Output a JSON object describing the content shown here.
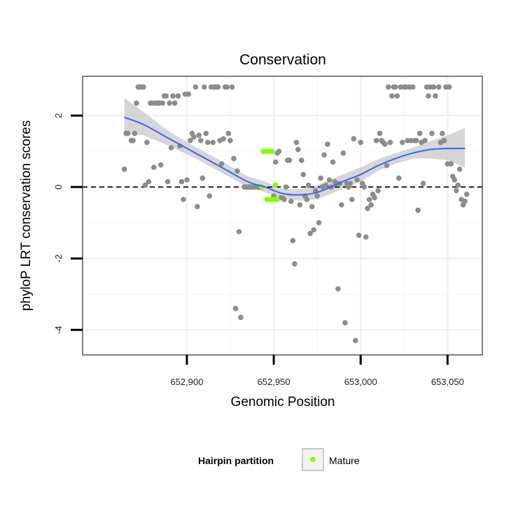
{
  "chart_data": {
    "type": "scatter",
    "title": "Conservation",
    "xlabel": "Genomic Position",
    "ylabel": "phyloP LRT conservation scores",
    "xlim": [
      652840,
      653070
    ],
    "ylim": [
      -4.7,
      3.1
    ],
    "x_ticks": [
      652900,
      652950,
      653000,
      653050
    ],
    "x_tick_labels": [
      "652,900",
      "652,950",
      "653,000",
      "653,050"
    ],
    "y_ticks": [
      -4,
      -2,
      0,
      2
    ],
    "y_tick_labels": [
      "-4",
      "-2",
      "0",
      "2"
    ],
    "grid": true,
    "reference_line": {
      "y": 0,
      "style": "dashed"
    },
    "colors": {
      "other": "#8c8c8c",
      "mature": "#7fff00",
      "smooth_line": "#3366ff",
      "confidence_band": "#c8c8c8",
      "dashed_line": "#000000"
    },
    "legend": {
      "title": "Hairpin partition",
      "position": "bottom",
      "entries": [
        {
          "label": "Mature",
          "color": "#7fff00"
        }
      ]
    },
    "series": [
      {
        "role": "other",
        "points": [
          [
            652864,
            0.5
          ],
          [
            652865,
            1.5
          ],
          [
            652866,
            1.5
          ],
          [
            652868,
            1.3
          ],
          [
            652869,
            1.3
          ],
          [
            652870,
            1.5
          ],
          [
            652871,
            2.35
          ],
          [
            652872,
            2.8
          ],
          [
            652873,
            2.8
          ],
          [
            652874,
            2.8
          ],
          [
            652875,
            2.8
          ],
          [
            652876,
            0.05
          ],
          [
            652877,
            1.25
          ],
          [
            652878,
            0.15
          ],
          [
            652879,
            2.35
          ],
          [
            652880,
            2.35
          ],
          [
            652881,
            0.55
          ],
          [
            652882,
            2.35
          ],
          [
            652883,
            2.35
          ],
          [
            652884,
            2.35
          ],
          [
            652885,
            0.62
          ],
          [
            652886,
            2.35
          ],
          [
            652887,
            2.55
          ],
          [
            652888,
            2.55
          ],
          [
            652889,
            0.15
          ],
          [
            652890,
            2.35
          ],
          [
            652891,
            1.1
          ],
          [
            652892,
            2.55
          ],
          [
            652893,
            2.35
          ],
          [
            652895,
            2.55
          ],
          [
            652896,
            1.15
          ],
          [
            652897,
            0.15
          ],
          [
            652898,
            -0.35
          ],
          [
            652899,
            2.6
          ],
          [
            652900,
            0.2
          ],
          [
            652901,
            2.6
          ],
          [
            652902,
            1.3
          ],
          [
            652903,
            1.5
          ],
          [
            652904,
            1.4
          ],
          [
            652905,
            2.8
          ],
          [
            652906,
            -0.55
          ],
          [
            652907,
            1.45
          ],
          [
            652908,
            1.3
          ],
          [
            652909,
            0.25
          ],
          [
            652910,
            2.8
          ],
          [
            652911,
            1.5
          ],
          [
            652912,
            1.25
          ],
          [
            652913,
            -0.25
          ],
          [
            652914,
            2.8
          ],
          [
            652915,
            1.25
          ],
          [
            652916,
            2.8
          ],
          [
            652917,
            2.8
          ],
          [
            652918,
            2.8
          ],
          [
            652919,
            1.3
          ],
          [
            652920,
            0.65
          ],
          [
            652921,
            1.35
          ],
          [
            652922,
            2.8
          ],
          [
            652923,
            2.8
          ],
          [
            652924,
            1.5
          ],
          [
            652925,
            1.3
          ],
          [
            652926,
            2.8
          ],
          [
            652927,
            0.8
          ],
          [
            652928,
            -3.4
          ],
          [
            652929,
            0.45
          ],
          [
            652930,
            -1.25
          ],
          [
            652931,
            -3.65
          ],
          [
            652933,
            0.0
          ],
          [
            652934,
            0.0
          ],
          [
            652935,
            0.0
          ],
          [
            652936,
            0.0
          ],
          [
            652937,
            0.0
          ],
          [
            652938,
            0.0
          ],
          [
            652939,
            0.0
          ],
          [
            652940,
            0.0
          ],
          [
            652941,
            0.0
          ],
          [
            652942,
            0.0
          ],
          [
            652950,
            -0.25
          ],
          [
            652951,
            0.7
          ],
          [
            652952,
            0.95
          ],
          [
            652953,
            1.0
          ],
          [
            652954,
            -0.3
          ],
          [
            652955,
            -0.3
          ],
          [
            652956,
            -0.35
          ],
          [
            652957,
            0.0
          ],
          [
            652958,
            0.75
          ],
          [
            652959,
            0.75
          ],
          [
            652960,
            -0.4
          ],
          [
            652961,
            -1.5
          ],
          [
            652962,
            -2.15
          ],
          [
            652963,
            1.25
          ],
          [
            652964,
            1.05
          ],
          [
            652965,
            -0.5
          ],
          [
            652966,
            0.75
          ],
          [
            652967,
            0.35
          ],
          [
            652968,
            -0.25
          ],
          [
            652969,
            -0.35
          ],
          [
            652970,
            0.05
          ],
          [
            652971,
            -1.3
          ],
          [
            652972,
            -0.55
          ],
          [
            652973,
            -1.2
          ],
          [
            652974,
            -0.1
          ],
          [
            652975,
            -0.25
          ],
          [
            652976,
            -1.0
          ],
          [
            652977,
            0.25
          ],
          [
            652978,
            0.0
          ],
          [
            652979,
            0.9
          ],
          [
            652980,
            0.05
          ],
          [
            652981,
            1.2
          ],
          [
            652982,
            0.2
          ],
          [
            652983,
            0.0
          ],
          [
            652984,
            0.7
          ],
          [
            652985,
            0.15
          ],
          [
            652986,
            0.1
          ],
          [
            652987,
            -2.85
          ],
          [
            652988,
            0.1
          ],
          [
            652989,
            -0.5
          ],
          [
            652990,
            0.95
          ],
          [
            652991,
            -3.8
          ],
          [
            652992,
            0.1
          ],
          [
            652993,
            0.0
          ],
          [
            652994,
            0.1
          ],
          [
            652995,
            -0.35
          ],
          [
            652996,
            1.35
          ],
          [
            652997,
            -4.3
          ],
          [
            652998,
            0.2
          ],
          [
            652999,
            -1.35
          ],
          [
            653000,
            1.25
          ],
          [
            653001,
            0.1
          ],
          [
            653002,
            0.0
          ],
          [
            653003,
            -1.4
          ],
          [
            653004,
            -0.6
          ],
          [
            653005,
            -0.35
          ],
          [
            653006,
            -0.5
          ],
          [
            653007,
            -0.2
          ],
          [
            653008,
            -0.3
          ],
          [
            653009,
            1.3
          ],
          [
            653010,
            -0.1
          ],
          [
            653011,
            1.5
          ],
          [
            653012,
            1.3
          ],
          [
            653013,
            1.25
          ],
          [
            653014,
            1.2
          ],
          [
            653015,
            0.6
          ],
          [
            653016,
            2.8
          ],
          [
            653017,
            1.25
          ],
          [
            653018,
            2.55
          ],
          [
            653019,
            2.8
          ],
          [
            653020,
            2.8
          ],
          [
            653021,
            2.55
          ],
          [
            653022,
            0.25
          ],
          [
            653023,
            2.8
          ],
          [
            653024,
            1.25
          ],
          [
            653025,
            2.8
          ],
          [
            653026,
            2.8
          ],
          [
            653027,
            1.3
          ],
          [
            653028,
            2.8
          ],
          [
            653029,
            1.3
          ],
          [
            653030,
            2.8
          ],
          [
            653031,
            1.3
          ],
          [
            653032,
            1.3
          ],
          [
            653033,
            -0.65
          ],
          [
            653034,
            1.5
          ],
          [
            653035,
            1.25
          ],
          [
            653036,
            0.1
          ],
          [
            653037,
            1.3
          ],
          [
            653038,
            2.8
          ],
          [
            653039,
            2.55
          ],
          [
            653040,
            2.8
          ],
          [
            653041,
            1.5
          ],
          [
            653042,
            2.8
          ],
          [
            653043,
            2.55
          ],
          [
            653045,
            2.8
          ],
          [
            653046,
            1.25
          ],
          [
            653047,
            1.5
          ],
          [
            653048,
            1.3
          ],
          [
            653049,
            2.8
          ],
          [
            653050,
            0.65
          ],
          [
            653051,
            2.8
          ],
          [
            653052,
            0.65
          ],
          [
            653053,
            0.3
          ],
          [
            653054,
            0.2
          ],
          [
            653055,
            -0.1
          ],
          [
            653056,
            0.05
          ],
          [
            653057,
            0.5
          ],
          [
            653058,
            -0.35
          ],
          [
            653059,
            -0.5
          ],
          [
            653060,
            -0.4
          ],
          [
            653061,
            -0.2
          ]
        ]
      },
      {
        "name": "Mature",
        "role": "mature",
        "points": [
          [
            652943,
            0.0
          ],
          [
            652944,
            1.0
          ],
          [
            652945,
            1.0
          ],
          [
            652946,
            -0.35
          ],
          [
            652947,
            1.0
          ],
          [
            652948,
            -0.35
          ],
          [
            652949,
            1.0
          ],
          [
            652950,
            -0.35
          ],
          [
            652951,
            0.05
          ],
          [
            652952,
            -0.35
          ]
        ]
      }
    ],
    "smooth": {
      "x": [
        652864,
        652875,
        652890,
        652905,
        652920,
        652935,
        652945,
        652955,
        652965,
        652975,
        652985,
        652992,
        653000,
        653010,
        653020,
        653030,
        653040,
        653050,
        653060
      ],
      "y": [
        1.95,
        1.75,
        1.35,
        0.95,
        0.55,
        0.15,
        0.0,
        -0.18,
        -0.22,
        -0.15,
        0.05,
        0.2,
        0.35,
        0.6,
        0.8,
        0.95,
        1.05,
        1.08,
        1.08
      ],
      "lower": [
        1.5,
        1.45,
        1.15,
        0.8,
        0.4,
        0.0,
        -0.15,
        -0.32,
        -0.38,
        -0.35,
        -0.15,
        0.0,
        0.15,
        0.45,
        0.65,
        0.8,
        0.8,
        0.75,
        0.55
      ],
      "upper": [
        2.5,
        2.1,
        1.55,
        1.12,
        0.72,
        0.3,
        0.15,
        -0.05,
        -0.06,
        0.05,
        0.25,
        0.4,
        0.55,
        0.78,
        0.95,
        1.1,
        1.28,
        1.45,
        1.65
      ]
    }
  }
}
